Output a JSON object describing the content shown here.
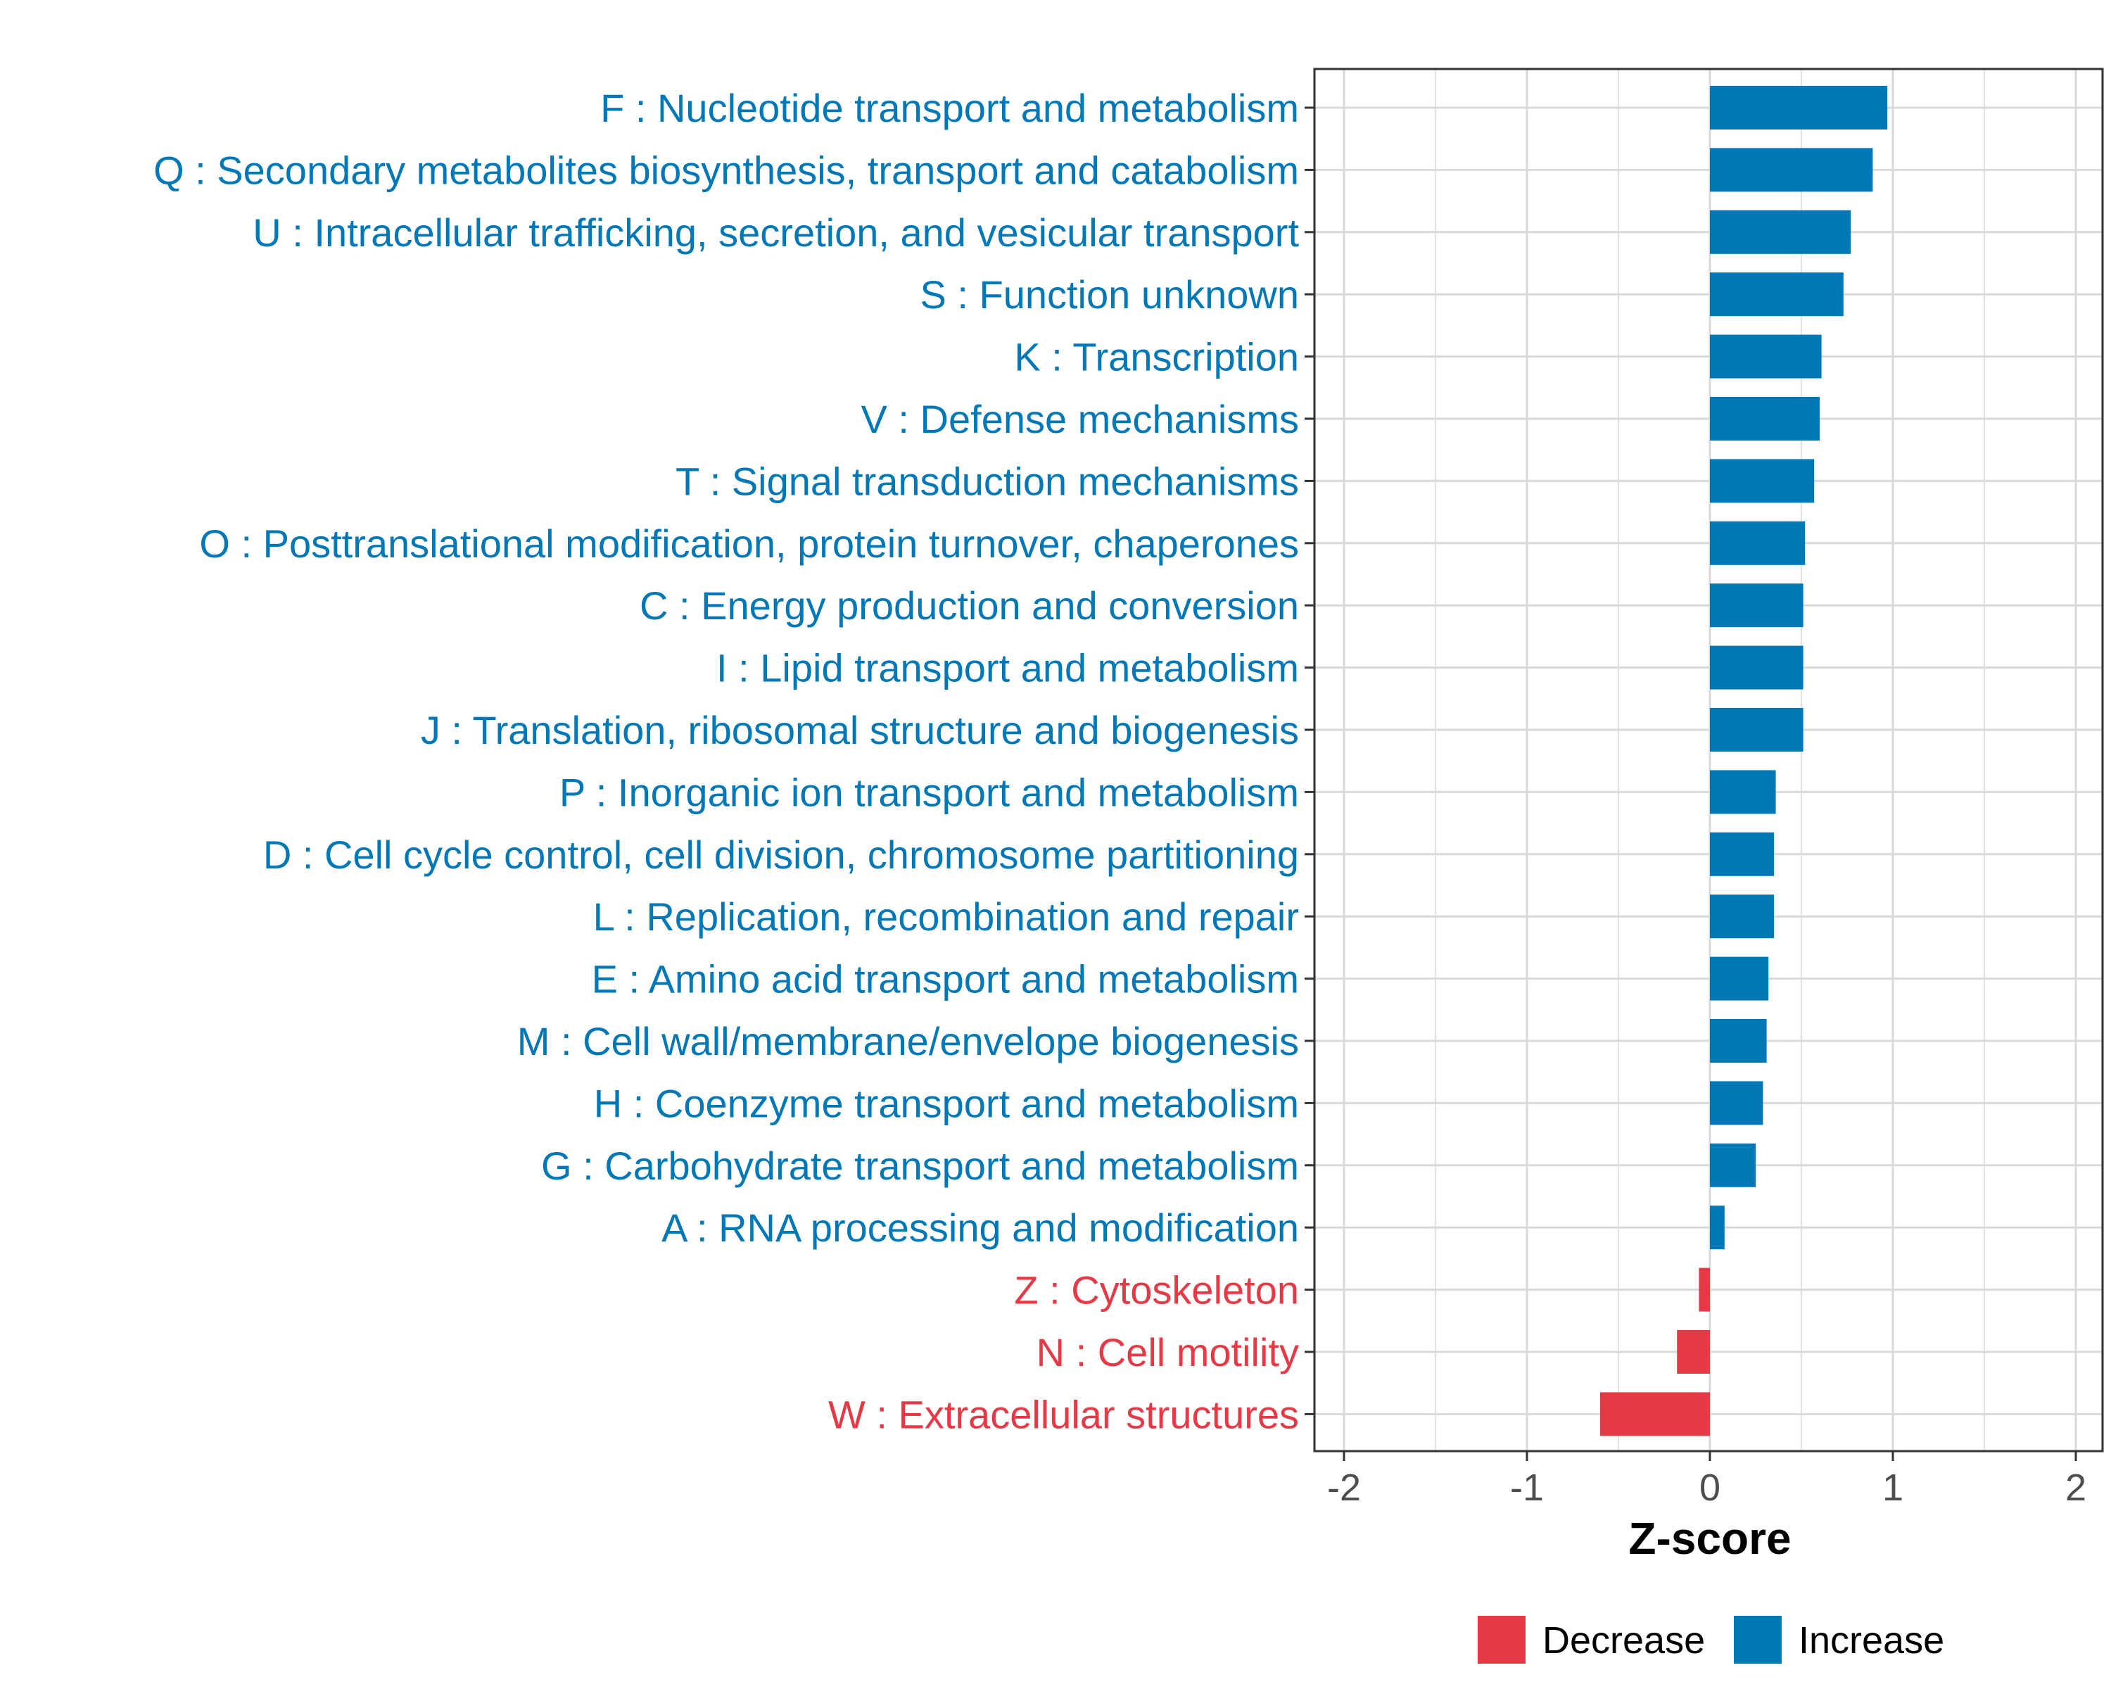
{
  "chart_data": {
    "type": "bar",
    "orientation": "horizontal",
    "xlabel": "Z-score",
    "ylabel": "",
    "xlim": [
      -2.15,
      2.15
    ],
    "xticks": [
      -2,
      -1,
      0,
      1,
      2
    ],
    "grid": true,
    "legend_position": "bottom",
    "colors": {
      "Increase": "#0077b6",
      "Decrease": "#e63946",
      "grid": "#d9d9d9",
      "axis": "#333333"
    },
    "legend": [
      {
        "name": "Decrease",
        "color": "#e63946"
      },
      {
        "name": "Increase",
        "color": "#0077b6"
      }
    ],
    "categories": [
      {
        "label": "F : Nucleotide transport and metabolism",
        "value": 0.97,
        "direction": "Increase"
      },
      {
        "label": "Q : Secondary metabolites biosynthesis, transport and catabolism",
        "value": 0.89,
        "direction": "Increase"
      },
      {
        "label": "U : Intracellular trafficking, secretion, and vesicular transport",
        "value": 0.77,
        "direction": "Increase"
      },
      {
        "label": "S : Function unknown",
        "value": 0.73,
        "direction": "Increase"
      },
      {
        "label": "K : Transcription",
        "value": 0.61,
        "direction": "Increase"
      },
      {
        "label": "V : Defense mechanisms",
        "value": 0.6,
        "direction": "Increase"
      },
      {
        "label": "T : Signal transduction mechanisms",
        "value": 0.57,
        "direction": "Increase"
      },
      {
        "label": "O : Posttranslational modification, protein turnover, chaperones",
        "value": 0.52,
        "direction": "Increase"
      },
      {
        "label": "C : Energy production and conversion",
        "value": 0.51,
        "direction": "Increase"
      },
      {
        "label": "I : Lipid transport and metabolism",
        "value": 0.51,
        "direction": "Increase"
      },
      {
        "label": "J : Translation, ribosomal structure and biogenesis",
        "value": 0.51,
        "direction": "Increase"
      },
      {
        "label": "P : Inorganic ion transport and metabolism",
        "value": 0.36,
        "direction": "Increase"
      },
      {
        "label": "D : Cell cycle control, cell division, chromosome partitioning",
        "value": 0.35,
        "direction": "Increase"
      },
      {
        "label": "L : Replication, recombination and repair",
        "value": 0.35,
        "direction": "Increase"
      },
      {
        "label": "E : Amino acid transport and metabolism",
        "value": 0.32,
        "direction": "Increase"
      },
      {
        "label": "M : Cell wall/membrane/envelope biogenesis",
        "value": 0.31,
        "direction": "Increase"
      },
      {
        "label": "H : Coenzyme transport and metabolism",
        "value": 0.29,
        "direction": "Increase"
      },
      {
        "label": "G : Carbohydrate transport and metabolism",
        "value": 0.25,
        "direction": "Increase"
      },
      {
        "label": "A : RNA processing and modification",
        "value": 0.08,
        "direction": "Increase"
      },
      {
        "label": "Z : Cytoskeleton",
        "value": -0.06,
        "direction": "Decrease"
      },
      {
        "label": "N : Cell motility",
        "value": -0.18,
        "direction": "Decrease"
      },
      {
        "label": "W : Extracellular structures",
        "value": -0.6,
        "direction": "Decrease"
      }
    ]
  }
}
